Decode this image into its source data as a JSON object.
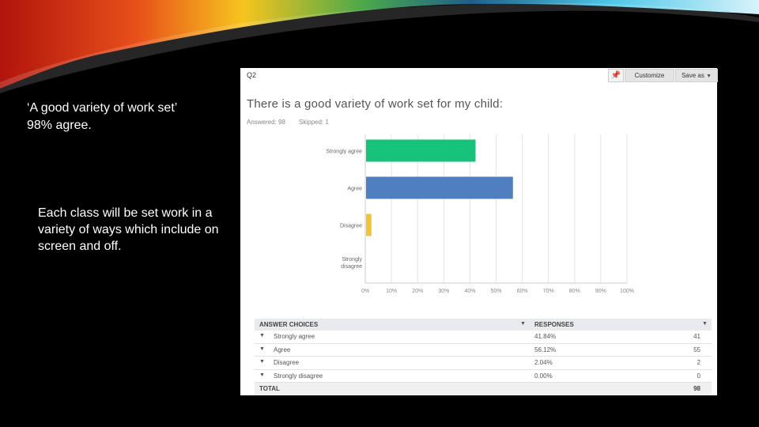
{
  "slide": {
    "quote": "‘A good variety of work set’",
    "quote_pct": "98% agree.",
    "note": "Each class will be set work in a variety of ways which include on screen and off."
  },
  "survey": {
    "question_number": "Q2",
    "pin_icon": "pin-icon",
    "customize_label": "Customize",
    "save_as_label": "Save as",
    "question_title": "There is a good variety of work set for my child:",
    "answered": "Answered: 98",
    "skipped": "Skipped: 1"
  },
  "chart_data": {
    "type": "bar",
    "orientation": "horizontal",
    "categories": [
      "Strongly agree",
      "Agree",
      "Disagree",
      "Strongly disagree"
    ],
    "values": [
      41.84,
      56.12,
      2.04,
      0.0
    ],
    "colors": [
      "#17c27a",
      "#4f7ec1",
      "#f4c430",
      "#999999"
    ],
    "xlim": [
      0,
      100
    ],
    "xticks": [
      "0%",
      "10%",
      "20%",
      "30%",
      "40%",
      "50%",
      "60%",
      "70%",
      "80%",
      "90%",
      "100%"
    ],
    "grid": true
  },
  "table": {
    "header_choices": "ANSWER CHOICES",
    "header_responses": "RESPONSES",
    "rows": [
      {
        "choice": "Strongly agree",
        "percent": "41.84%",
        "count": "41"
      },
      {
        "choice": "Agree",
        "percent": "56.12%",
        "count": "55"
      },
      {
        "choice": "Disagree",
        "percent": "2.04%",
        "count": "2"
      },
      {
        "choice": "Strongly disagree",
        "percent": "0.00%",
        "count": "0"
      }
    ],
    "total_label": "TOTAL",
    "total_value": "98"
  }
}
